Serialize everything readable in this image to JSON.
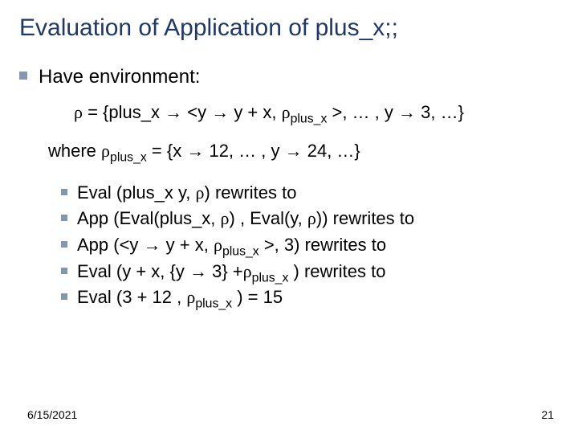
{
  "title": "Evaluation of Application of plus_x;;",
  "lead": "Have environment:",
  "rho_def": "ρ = {plus_x → <y → y + x, ρplus_x >, … , y → 3, …}",
  "where_line": "where ρplus_x = {x → 12, … , y → 24, …}",
  "steps": [
    "Eval (plus_x y, ρ) rewrites to",
    "App (Eval(plus_x, ρ) , Eval(y, ρ)) rewrites to",
    "App (<y → y + x, ρplus_x >, 3) rewrites to",
    "Eval (y + x, {y → 3} +ρplus_x ) rewrites to",
    "Eval (3 + 12 , ρplus_x ) = 15"
  ],
  "footer_date": "6/15/2021",
  "footer_page": "21",
  "colors": {
    "title": "#1f3864",
    "bullet": "#8497b0",
    "text": "#000000",
    "background": "#ffffff"
  },
  "fontsize": {
    "title": 30,
    "body": 22,
    "footer": 14
  }
}
